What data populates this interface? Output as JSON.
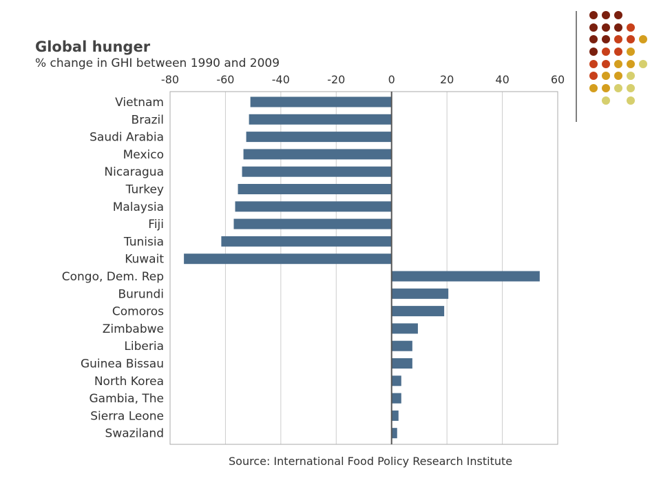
{
  "chart_data": {
    "type": "bar",
    "orientation": "horizontal",
    "title": "Global hunger",
    "subtitle": "% change in GHI between 1990 and 2009",
    "source": "Source: International Food Policy Research Institute",
    "categories": [
      "Vietnam",
      "Brazil",
      "Saudi Arabia",
      "Mexico",
      "Nicaragua",
      "Turkey",
      "Malaysia",
      "Fiji",
      "Tunisia",
      "Kuwait",
      "Congo, Dem. Rep",
      "Burundi",
      "Comoros",
      "Zimbabwe",
      "Liberia",
      "Guinea Bissau",
      "North Korea",
      "Gambia, The",
      "Sierra Leone",
      "Swaziland"
    ],
    "values": [
      -51,
      -51.5,
      -52.5,
      -53.5,
      -54,
      -55.5,
      -56.5,
      -57,
      -61.5,
      -75,
      53.5,
      20.5,
      19,
      9.5,
      7.5,
      7.5,
      3.5,
      3.5,
      2.5,
      2
    ],
    "xlim": [
      -80,
      60
    ],
    "xticks": [
      -80,
      -60,
      -40,
      -20,
      0,
      20,
      40,
      60
    ],
    "xlabel": "",
    "ylabel": "",
    "grid": "vertical",
    "colors": {
      "bar": "#4b6d8c",
      "grid": "#cccccc",
      "zero_line": "#555555",
      "frame": "#aaaaaa"
    }
  },
  "decoration": {
    "dot_colors": {
      "dark_red": "#7a1f0e",
      "orange_red": "#c8401a",
      "gold": "#d49e1e",
      "khaki": "#d6cf6e"
    },
    "divider_color": "#555555"
  }
}
